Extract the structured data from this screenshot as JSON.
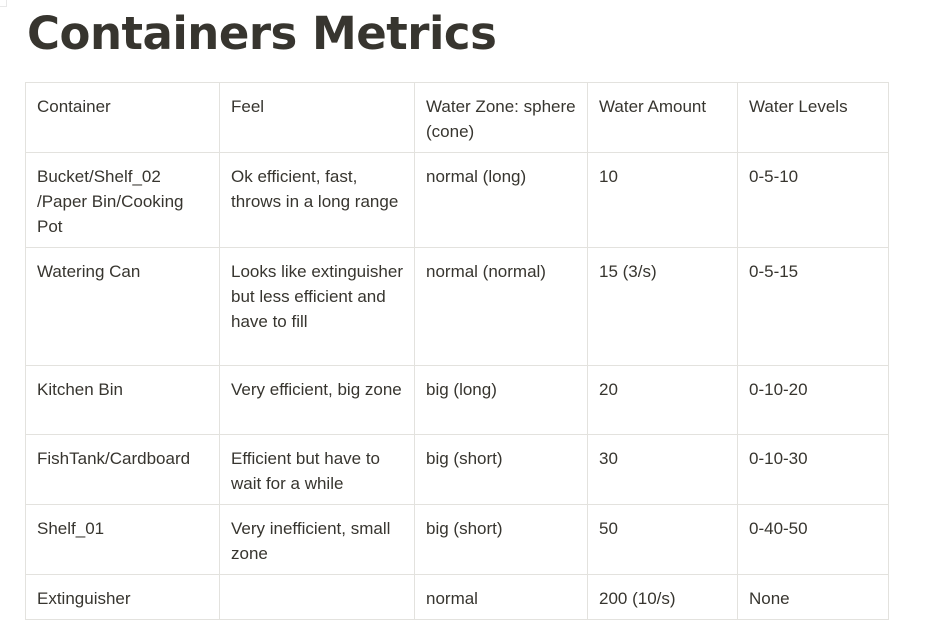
{
  "page": {
    "title": "Containers Metrics"
  },
  "table": {
    "headers": [
      "Container",
      "Feel",
      "Water Zone: sphere (cone)",
      "Water Amount",
      "Water Levels"
    ],
    "rows": [
      {
        "container": "Bucket/Shelf_02 /Paper Bin/Cooking Pot",
        "feel": "Ok efficient, fast, throws in a long range",
        "water_zone": "normal (long)",
        "water_amount": "10",
        "water_levels": "0-5-10"
      },
      {
        "container": "Watering Can",
        "feel": "Looks like extinguisher but less efficient and have to fill",
        "water_zone": "normal (normal)",
        "water_amount": "15 (3/s)",
        "water_levels": "0-5-15"
      },
      {
        "container": "Kitchen Bin",
        "feel": "Very efficient, big zone",
        "water_zone": "big (long)",
        "water_amount": "20",
        "water_levels": "0-10-20"
      },
      {
        "container": "FishTank/Cardboard",
        "feel": "Efficient but have to wait for a while",
        "water_zone": "big (short)",
        "water_amount": "30",
        "water_levels": "0-10-30"
      },
      {
        "container": "Shelf_01",
        "feel": "Very inefficient, small zone",
        "water_zone": "big (short)",
        "water_amount": "50",
        "water_levels": "0-40-50"
      },
      {
        "container": "Extinguisher",
        "feel": "",
        "water_zone": "normal",
        "water_amount": "200 (10/s)",
        "water_levels": "None"
      }
    ]
  }
}
